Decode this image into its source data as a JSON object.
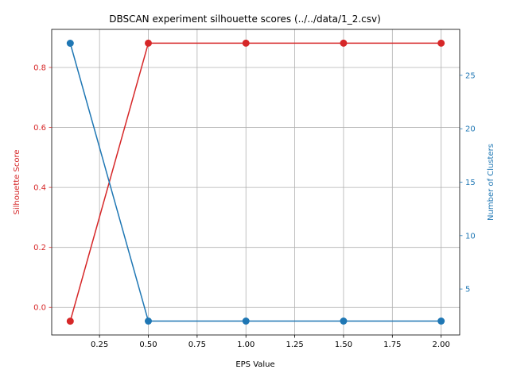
{
  "chart_data": {
    "type": "line",
    "title": "DBSCAN experiment silhouette scores (../../data/1_2.csv)",
    "xlabel": "EPS Value",
    "ylabel_left": "Silhouette Score",
    "ylabel_right": "Number of Clusters",
    "x": [
      0.1,
      0.5,
      1.0,
      1.5,
      2.0
    ],
    "xlim": [
      0.005,
      2.095
    ],
    "ylim_left": [
      -0.092,
      0.927
    ],
    "ylim_right": [
      0.7,
      29.3
    ],
    "x_ticks": [
      "0.25",
      "0.50",
      "0.75",
      "1.00",
      "1.25",
      "1.50",
      "1.75",
      "2.00"
    ],
    "y_left_ticks": [
      "0.0",
      "0.2",
      "0.4",
      "0.6",
      "0.8"
    ],
    "y_right_ticks": [
      "5",
      "10",
      "15",
      "20",
      "25"
    ],
    "grid": true,
    "series": [
      {
        "name": "Silhouette Score",
        "axis": "left",
        "color": "#d62728",
        "values": [
          -0.046,
          0.881,
          0.881,
          0.881,
          0.881
        ]
      },
      {
        "name": "Number of Clusters",
        "axis": "right",
        "color": "#1f77b4",
        "values": [
          28,
          2,
          2,
          2,
          2
        ]
      }
    ]
  }
}
